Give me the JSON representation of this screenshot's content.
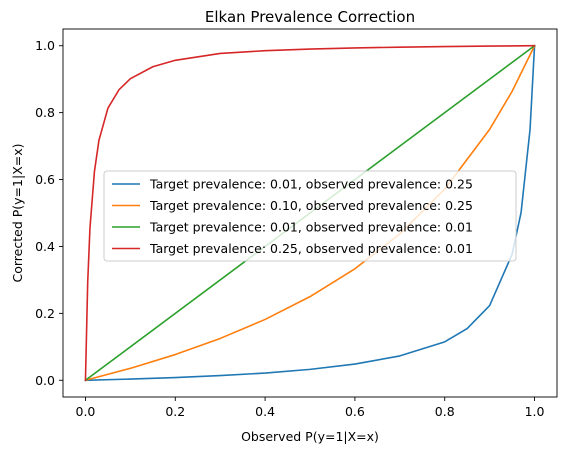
{
  "chart_data": {
    "type": "line",
    "title": "Elkan Prevalence Correction",
    "xlabel": "Observed P(y=1|X=x)",
    "ylabel": "Corrected P(y=1|X=x)",
    "xlim": [
      -0.05,
      1.05
    ],
    "ylim": [
      -0.05,
      1.05
    ],
    "xticks": [
      0.0,
      0.2,
      0.4,
      0.6,
      0.8,
      1.0
    ],
    "yticks": [
      0.0,
      0.2,
      0.4,
      0.6,
      0.8,
      1.0
    ],
    "xtick_labels": [
      "0.0",
      "0.2",
      "0.4",
      "0.6",
      "0.8",
      "1.0"
    ],
    "ytick_labels": [
      "0.0",
      "0.2",
      "0.4",
      "0.6",
      "0.8",
      "1.0"
    ],
    "grid": false,
    "legend_position": "center",
    "series": [
      {
        "name": "Target prevalence: 0.01, observed prevalence: 0.25",
        "color": "#1f77b4",
        "x": [
          0.0,
          0.1,
          0.2,
          0.3,
          0.4,
          0.5,
          0.6,
          0.7,
          0.8,
          0.85,
          0.9,
          0.95,
          0.97,
          0.99,
          1.0
        ],
        "y": [
          0.0,
          0.0036,
          0.0081,
          0.014,
          0.0216,
          0.0326,
          0.0484,
          0.0728,
          0.1148,
          0.1546,
          0.2233,
          0.3765,
          0.5013,
          0.75,
          1.0
        ]
      },
      {
        "name": "Target prevalence: 0.10, observed prevalence: 0.25",
        "color": "#ff7f0e",
        "x": [
          0.0,
          0.1,
          0.2,
          0.3,
          0.4,
          0.5,
          0.6,
          0.7,
          0.8,
          0.9,
          0.95,
          1.0
        ],
        "y": [
          0.0,
          0.0357,
          0.0769,
          0.125,
          0.1818,
          0.25,
          0.3333,
          0.4375,
          0.5714,
          0.75,
          0.8636,
          1.0
        ]
      },
      {
        "name": "Target prevalence: 0.01, observed prevalence: 0.01",
        "color": "#2ca02c",
        "x": [
          0.0,
          1.0
        ],
        "y": [
          0.0,
          1.0
        ]
      },
      {
        "name": "Target prevalence: 0.25, observed prevalence: 0.01",
        "color": "#d62728",
        "x": [
          0.0,
          0.005,
          0.01,
          0.02,
          0.03,
          0.05,
          0.075,
          0.1,
          0.15,
          0.2,
          0.3,
          0.4,
          0.5,
          0.6,
          0.7,
          0.8,
          0.9,
          1.0
        ],
        "y": [
          0.0,
          0.2924,
          0.4545,
          0.6241,
          0.7171,
          0.8133,
          0.8691,
          0.9015,
          0.9372,
          0.9565,
          0.977,
          0.9851,
          0.99,
          0.9933,
          0.9957,
          0.9975,
          0.9989,
          1.0
        ]
      }
    ]
  }
}
